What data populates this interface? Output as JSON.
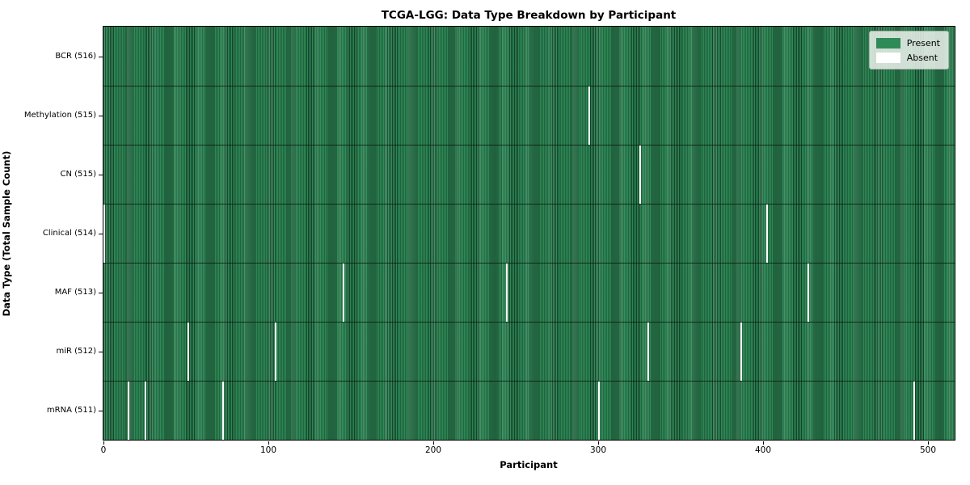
{
  "chart_data": {
    "type": "heatmap",
    "title": "TCGA-LGG: Data Type Breakdown by Participant",
    "xlabel": "Participant",
    "ylabel": "Data Type (Total Sample Count)",
    "xlim": [
      0,
      516
    ],
    "x_ticks": [
      0,
      100,
      200,
      300,
      400,
      500
    ],
    "n_participants": 516,
    "grid": false,
    "legend": {
      "position": "upper right",
      "present_label": "Present",
      "absent_label": "Absent"
    },
    "rows": [
      {
        "label": "BCR (516)",
        "total": 516,
        "absent_participants": []
      },
      {
        "label": "Methylation (515)",
        "total": 515,
        "absent_participants": [
          294
        ]
      },
      {
        "label": "CN (515)",
        "total": 515,
        "absent_participants": [
          325
        ]
      },
      {
        "label": "Clinical (514)",
        "total": 514,
        "absent_participants": [
          0,
          402
        ]
      },
      {
        "label": "MAF (513)",
        "total": 513,
        "absent_participants": [
          145,
          244,
          427
        ]
      },
      {
        "label": "miR (512)",
        "total": 512,
        "absent_participants": [
          51,
          104,
          330,
          386
        ]
      },
      {
        "label": "mRNA (511)",
        "total": 511,
        "absent_participants": [
          15,
          25,
          72,
          300,
          491
        ]
      }
    ],
    "colors": {
      "present": "#2e8b57",
      "present_edge": "#16422a",
      "band_highlight": "rgba(255,255,255,0.10)",
      "absent": "#ffffff",
      "row_divider": "rgba(10,20,12,0.75)",
      "spine": "#000000"
    }
  }
}
